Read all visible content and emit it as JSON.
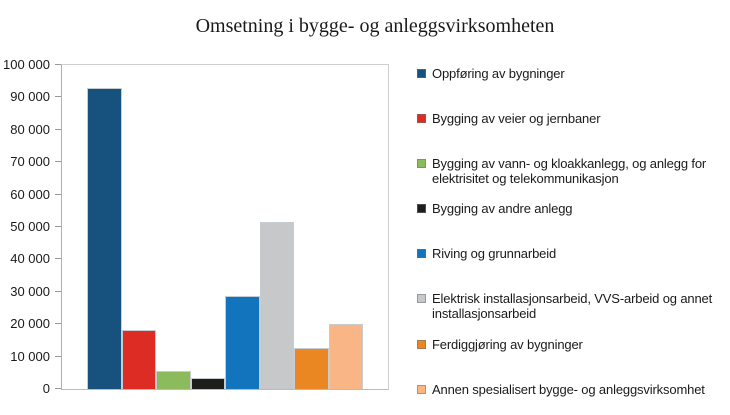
{
  "chart_data": {
    "type": "bar",
    "title": "Omsetning i bygge- og anleggsvirksomheten",
    "ylim": [
      0,
      100000
    ],
    "ytick_labels": [
      "100 000",
      "90 000",
      "80 000",
      "70 000",
      "60 000",
      "50 000",
      "40 000",
      "30 000",
      "20 000",
      "10 000",
      "0"
    ],
    "grid": false,
    "legend_position": "right",
    "series": [
      {
        "name": "Oppføring av bygninger",
        "value": 92800,
        "color": "#16527D"
      },
      {
        "name": "Bygging av veier og jernbaner",
        "value": 18300,
        "color": "#DD2C23"
      },
      {
        "name": "Bygging av vann- og kloakkanlegg, og anlegg for elektrisitet og telekommunikasjon",
        "value": 5500,
        "color": "#8CBB5E"
      },
      {
        "name": "Bygging av andre anlegg",
        "value": 3400,
        "color": "#1D1D1B"
      },
      {
        "name": "Riving og grunnarbeid",
        "value": 28800,
        "color": "#1274BC"
      },
      {
        "name": "Elektrisk installasjonsarbeid, VVS-arbeid og annet installasjonsarbeid",
        "value": 51600,
        "color": "#C7C8CA"
      },
      {
        "name": "Ferdiggjøring av bygninger",
        "value": 12600,
        "color": "#EB8723"
      },
      {
        "name": "Annen spesialisert bygge- og anleggsvirksomhet",
        "value": 20100,
        "color": "#F9B585"
      }
    ]
  }
}
